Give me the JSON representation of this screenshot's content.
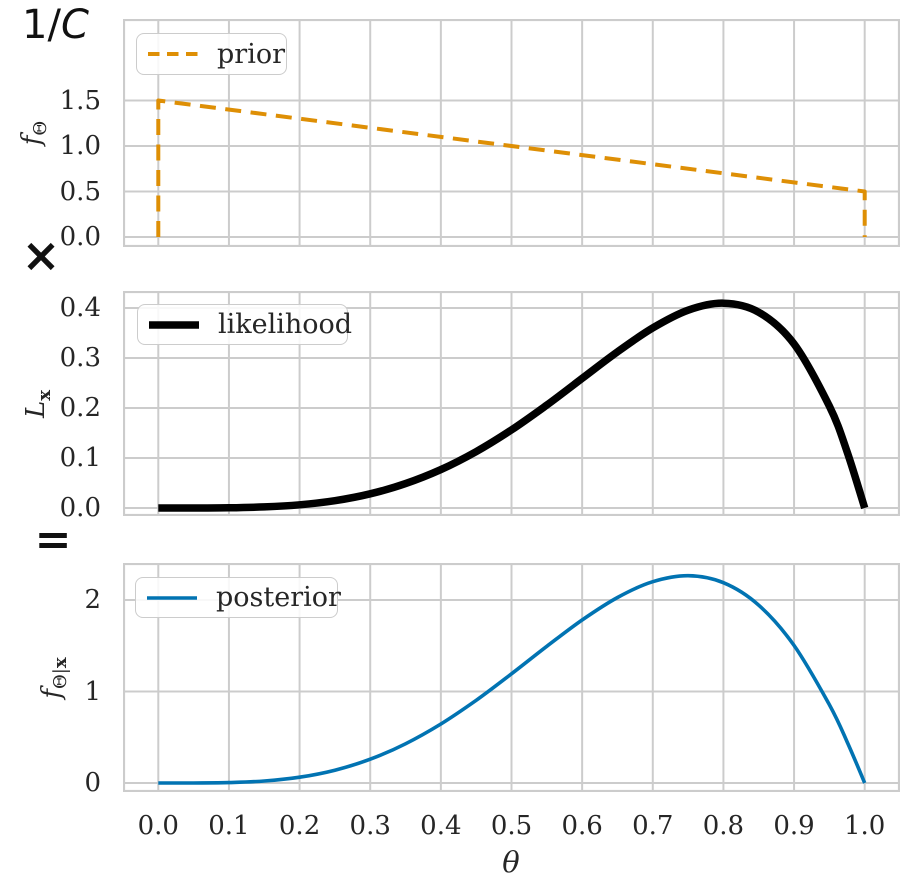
{
  "figure": {
    "background": "#ffffff",
    "grid_color": "#cccccc",
    "text_color": "#262626",
    "annotations": {
      "normalizer_plain": "1/",
      "normalizer_italic": "C",
      "multiply": "×",
      "equals": "="
    },
    "x_axis": {
      "label": "θ",
      "xlim": [
        -0.05,
        1.05
      ],
      "ticks": [
        0,
        0.1,
        0.2,
        0.3,
        0.4,
        0.5,
        0.6,
        0.7,
        0.8,
        0.9,
        1.0
      ],
      "tick_labels": [
        "0.0",
        "0.1",
        "0.2",
        "0.3",
        "0.4",
        "0.5",
        "0.6",
        "0.7",
        "0.8",
        "0.9",
        "1.0"
      ]
    }
  },
  "chart_data": [
    {
      "type": "line",
      "name": "prior",
      "legend_label": "prior",
      "legend_position": "upper-left",
      "ylabel": {
        "main": "f",
        "sub": "Θ",
        "sub_bold": ""
      },
      "color": "#DE8F05",
      "line_style": "dashed",
      "line_width": 4,
      "grid": true,
      "ylim": [
        -0.11,
        2.396
      ],
      "yticks": [
        0,
        0.5,
        1.0,
        1.5
      ],
      "ytick_labels": [
        "0.0",
        "0.5",
        "1.0",
        "1.5"
      ],
      "x": [
        0,
        0,
        1,
        1
      ],
      "y": [
        0,
        1.5,
        0.5,
        0
      ],
      "smooth": false
    },
    {
      "type": "line",
      "name": "likelihood",
      "legend_label": "likelihood",
      "legend_position": "upper-left",
      "ylabel": {
        "main": "L",
        "sub": "",
        "sub_bold": "x"
      },
      "color": "#000000",
      "line_style": "solid",
      "line_width": 7.5,
      "grid": true,
      "ylim": [
        -0.016,
        0.434
      ],
      "yticks": [
        0,
        0.1,
        0.2,
        0.3,
        0.4
      ],
      "ytick_labels": [
        "0.0",
        "0.1",
        "0.2",
        "0.3",
        "0.4"
      ],
      "x": [
        0,
        0.05,
        0.1,
        0.15,
        0.2,
        0.25,
        0.3,
        0.35,
        0.4,
        0.45,
        0.5,
        0.55,
        0.6,
        0.65,
        0.7,
        0.75,
        0.8,
        0.85,
        0.9,
        0.95,
        0.975,
        1
      ],
      "y": [
        0,
        3e-05,
        0.00045,
        0.00215,
        0.0064,
        0.01465,
        0.02835,
        0.04877,
        0.0768,
        0.11277,
        0.15625,
        0.20589,
        0.2592,
        0.31239,
        0.36015,
        0.39551,
        0.4096,
        0.39151,
        0.32805,
        0.20363,
        0.11296,
        0
      ],
      "smooth": true
    },
    {
      "type": "line",
      "name": "posterior",
      "legend_label": "posterior",
      "legend_position": "upper-left",
      "ylabel": {
        "main": "f",
        "sub": "Θ|",
        "sub_bold": "x"
      },
      "color": "#0173B2",
      "line_style": "solid",
      "line_width": 3.6,
      "grid": true,
      "ylim": [
        -0.098,
        2.404
      ],
      "yticks": [
        0,
        1,
        2
      ],
      "ytick_labels": [
        "0",
        "1",
        "2"
      ],
      "x": [
        0,
        0.05,
        0.1,
        0.15,
        0.2,
        0.25,
        0.3,
        0.35,
        0.4,
        0.45,
        0.5,
        0.55,
        0.6,
        0.65,
        0.7,
        0.75,
        0.8,
        0.85,
        0.9,
        0.95,
        0.975,
        1
      ],
      "y": [
        0,
        0.00033,
        0.00481,
        0.02218,
        0.06353,
        0.13983,
        0.25979,
        0.42829,
        0.64512,
        0.90419,
        1.19318,
        1.49363,
        1.78141,
        2.02767,
        2.2002,
        2.26518,
        2.18951,
        1.94329,
        1.50306,
        0.85523,
        0.45288,
        0
      ],
      "smooth": true
    }
  ]
}
